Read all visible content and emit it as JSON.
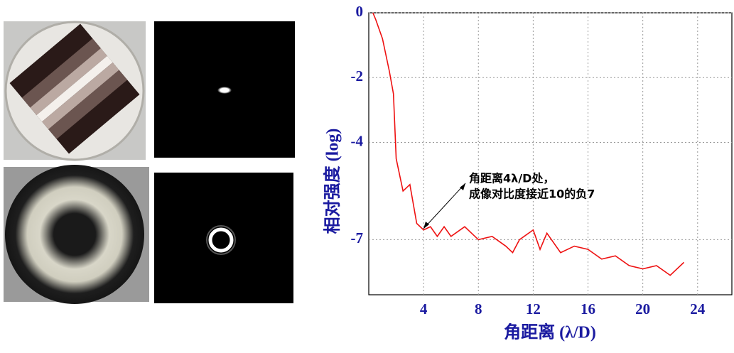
{
  "chart_data": {
    "type": "line",
    "ylabel": "相对强度 (log)",
    "xlabel": "角距离 (λ/D)",
    "annotation": [
      "角距离4λ/D处，",
      "成像对比度接近10的负7"
    ],
    "xlim": [
      0,
      26.5
    ],
    "ylim": [
      -8.7,
      0
    ],
    "xticks": [
      4,
      8,
      12,
      16,
      20,
      24
    ],
    "yticks": [
      0,
      -2,
      -4,
      -7
    ],
    "grid": true,
    "series": [
      {
        "color": "#ee1111",
        "x": [
          0.3,
          0.5,
          1,
          1.5,
          1.8,
          2,
          2.5,
          3,
          3.5,
          4,
          4.5,
          5,
          5.5,
          6,
          7,
          8,
          9,
          10,
          10.5,
          11,
          12,
          12.5,
          13,
          14,
          15,
          16,
          17,
          18,
          19,
          20,
          21,
          22,
          23
        ],
        "values": [
          0,
          -0.2,
          -0.8,
          -1.8,
          -2.5,
          -4.5,
          -5.5,
          -5.3,
          -6.5,
          -6.7,
          -6.6,
          -6.9,
          -6.6,
          -6.9,
          -6.6,
          -7,
          -6.9,
          -7.2,
          -7.4,
          -7,
          -6.7,
          -7.3,
          -6.8,
          -7.4,
          -7.2,
          -7.3,
          -7.6,
          -7.5,
          -7.8,
          -7.9,
          -7.8,
          -8.1,
          -7.7
        ]
      }
    ]
  }
}
